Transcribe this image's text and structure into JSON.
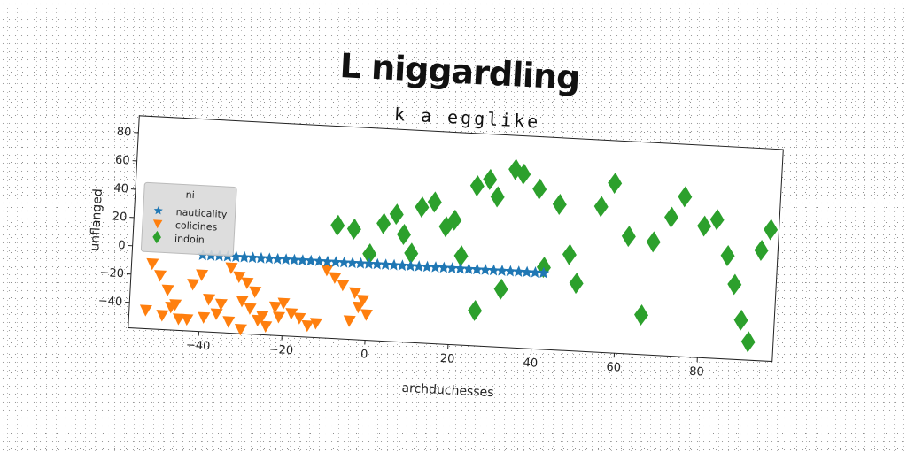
{
  "page": {
    "title": "L niggardling"
  },
  "chart_data": {
    "type": "scatter",
    "title": "k a egglike",
    "xlabel": "archduchesses",
    "ylabel": "unflanged",
    "xlim": [
      -57,
      98
    ],
    "ylim": [
      -58,
      92
    ],
    "xticks": [
      -40,
      -20,
      0,
      20,
      40,
      60,
      80
    ],
    "yticks": [
      -40,
      -20,
      0,
      20,
      40,
      60,
      80
    ],
    "grid": false,
    "legend": {
      "title": "ni",
      "placement": "center-left"
    },
    "series": [
      {
        "name": "nauticality",
        "marker": "star",
        "color": "#1f77b4",
        "x": [
          -40,
          -38,
          -36,
          -34,
          -32,
          -30,
          -28,
          -26,
          -24,
          -22,
          -20,
          -18,
          -16,
          -14,
          -12,
          -10,
          -8,
          -6,
          -4,
          -2,
          0,
          2,
          4,
          6,
          8,
          10,
          12,
          14,
          16,
          18,
          20,
          22,
          24,
          26,
          28,
          30,
          32,
          34,
          36,
          38,
          40,
          42
        ],
        "y": [
          -4,
          -4,
          -4,
          -4,
          -4,
          -4,
          -4,
          -4,
          -4,
          -4,
          -4,
          -4,
          -4,
          -4,
          -4,
          -4,
          -4,
          -4,
          -4,
          -4,
          -4,
          -4,
          -4,
          -4,
          -4,
          -4,
          -4,
          -4,
          -4,
          -4,
          -4,
          -4,
          -4,
          -4,
          -4,
          -4,
          -4,
          -4,
          -4,
          -4,
          -4,
          -4
        ]
      },
      {
        "name": "colicines",
        "marker": "triangle-down",
        "color": "#ff7f0e",
        "x": [
          -52,
          -50,
          -48,
          -46,
          -53,
          -49,
          -45,
          -47,
          -42,
          -40,
          -38,
          -36,
          -43,
          -39,
          -33,
          -31,
          -29,
          -27,
          -35,
          -30,
          -28,
          -25,
          -22,
          -20,
          -33,
          -30,
          -26,
          -24,
          -21,
          -18,
          -16,
          -14,
          -12,
          -10,
          -8,
          -6,
          -3,
          -1,
          -2,
          0,
          -4
        ],
        "y": [
          -12,
          -20,
          -30,
          -40,
          -45,
          -48,
          -50,
          -42,
          -25,
          -18,
          -35,
          -45,
          -50,
          -48,
          -12,
          -18,
          -22,
          -28,
          -38,
          -35,
          -40,
          -45,
          -38,
          -35,
          -50,
          -55,
          -48,
          -52,
          -45,
          -42,
          -45,
          -50,
          -48,
          -10,
          -15,
          -20,
          -25,
          -30,
          -35,
          -40,
          -45
        ]
      },
      {
        "name": "indoin",
        "marker": "diamond",
        "color": "#2ca02c",
        "x": [
          -8,
          -4,
          0,
          3,
          6,
          8,
          10,
          12,
          15,
          18,
          20,
          22,
          25,
          26,
          28,
          30,
          32,
          34,
          36,
          40,
          42,
          45,
          48,
          50,
          55,
          58,
          62,
          66,
          68,
          72,
          75,
          80,
          83,
          86,
          88,
          90,
          92,
          94,
          96
        ],
        "y": [
          22,
          20,
          3,
          25,
          32,
          18,
          5,
          38,
          42,
          25,
          30,
          5,
          55,
          -33,
          60,
          48,
          -17,
          68,
          65,
          55,
          0,
          45,
          10,
          -10,
          45,
          62,
          25,
          -30,
          22,
          40,
          55,
          35,
          40,
          15,
          -5,
          -30,
          -45,
          20,
          35
        ]
      }
    ]
  }
}
